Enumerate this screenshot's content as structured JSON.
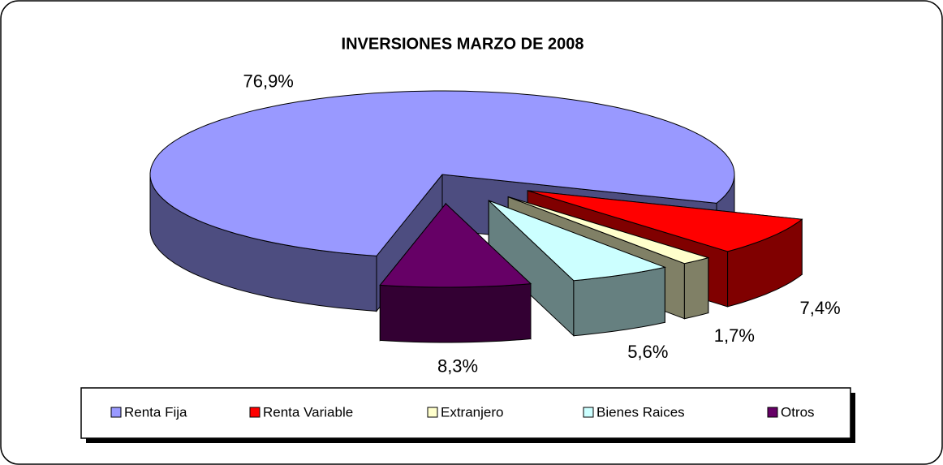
{
  "chart_data": {
    "type": "pie3d",
    "title": "INVERSIONES MARZO DE 2008",
    "categories": [
      "Renta Fija",
      "Renta Variable",
      "Extranjero",
      "Bienes Raices",
      "Otros"
    ],
    "values": [
      76.9,
      7.4,
      1.7,
      5.6,
      8.3
    ],
    "value_labels": [
      "76,9%",
      "7,4%",
      "1,7%",
      "5,6%",
      "8,3%"
    ],
    "colors": [
      "#9999ff",
      "#ff0000",
      "#ffffcc",
      "#ccffff",
      "#660066"
    ],
    "legend": "bottom"
  }
}
